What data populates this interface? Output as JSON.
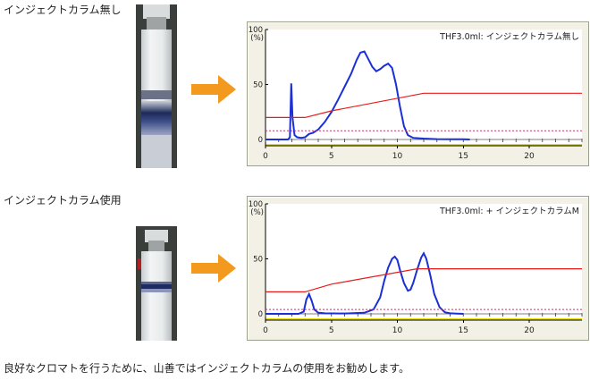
{
  "headings": {
    "without": "インジェクトカラム無し",
    "with": "インジェクトカラム使用"
  },
  "footer": "良好なクロマトを行うために、山善ではインジェクトカラムの使用をお勧めします。",
  "icons": {
    "arrow": "orange-right-arrow",
    "photo": "column-photo"
  },
  "colors": {
    "uv_trace": "#1a2fd8",
    "gradient": "#e81b1b",
    "threshold": "#d0306a",
    "baseline_yellow": "#e8e000",
    "arrow": "#f39a1e",
    "panel": "#f3f1e6"
  },
  "chart_data": [
    {
      "type": "line",
      "title": "THF3.0ml: インジェクトカラム無し",
      "ylabel": "(%)",
      "ylim": [
        0,
        100
      ],
      "xlim": [
        0,
        24
      ],
      "x_ticks": [
        "0",
        "5",
        "10",
        "15",
        "20"
      ],
      "y_ticks": [
        "100",
        "50",
        "0"
      ],
      "grid": false,
      "series": [
        {
          "role": "uv_trace",
          "x": [
            0,
            1.7,
            1.85,
            1.95,
            2.05,
            2.2,
            2.4,
            2.7,
            3.0,
            3.3,
            3.6,
            4,
            4.5,
            5,
            5.5,
            6,
            6.5,
            6.9,
            7.2,
            7.5,
            7.8,
            8.1,
            8.4,
            8.7,
            9.0,
            9.3,
            9.6,
            9.9,
            10.2,
            10.5,
            10.8,
            11.2,
            12,
            13,
            15,
            15.5
          ],
          "y": [
            0,
            0,
            2,
            51,
            20,
            4,
            2,
            1.5,
            2,
            5,
            6,
            9,
            16,
            25,
            36,
            48,
            60,
            72,
            79,
            80,
            73,
            66,
            62,
            64,
            67,
            69,
            65,
            50,
            30,
            12,
            4,
            1.5,
            0.8,
            0.3,
            0.2,
            0
          ]
        },
        {
          "role": "gradient",
          "x": [
            0,
            3,
            5,
            12,
            24
          ],
          "y": [
            20,
            20,
            26,
            42,
            42
          ]
        },
        {
          "role": "threshold",
          "x": [
            0,
            24
          ],
          "y": [
            8,
            8
          ]
        }
      ]
    },
    {
      "type": "line",
      "title": "THF3.0ml: + インジェクトカラムM",
      "ylabel": "(%)",
      "ylim": [
        0,
        100
      ],
      "xlim": [
        0,
        24
      ],
      "x_ticks": [
        "0",
        "5",
        "10",
        "15",
        "20"
      ],
      "y_ticks": [
        "100",
        "50",
        "0"
      ],
      "grid": false,
      "series": [
        {
          "role": "uv_trace",
          "x": [
            0,
            2.5,
            2.9,
            3.1,
            3.3,
            3.5,
            3.7,
            4.0,
            4.5,
            6,
            7.5,
            8.2,
            8.7,
            9.0,
            9.3,
            9.6,
            9.8,
            10.0,
            10.2,
            10.5,
            10.8,
            11.0,
            11.2,
            11.5,
            11.8,
            12.0,
            12.2,
            12.5,
            12.8,
            13.2,
            13.6,
            14,
            15
          ],
          "y": [
            0,
            0,
            2,
            13,
            18,
            12,
            4,
            1,
            0.5,
            0.3,
            1,
            4,
            15,
            30,
            42,
            50,
            52,
            49,
            40,
            28,
            21,
            22,
            28,
            40,
            51,
            55,
            50,
            35,
            18,
            6,
            1.5,
            0.5,
            0
          ]
        },
        {
          "role": "gradient",
          "x": [
            0,
            3,
            5,
            11.5,
            24
          ],
          "y": [
            20,
            20,
            27,
            41,
            41
          ]
        },
        {
          "role": "threshold",
          "x": [
            0,
            24
          ],
          "y": [
            4,
            4
          ]
        }
      ]
    }
  ]
}
